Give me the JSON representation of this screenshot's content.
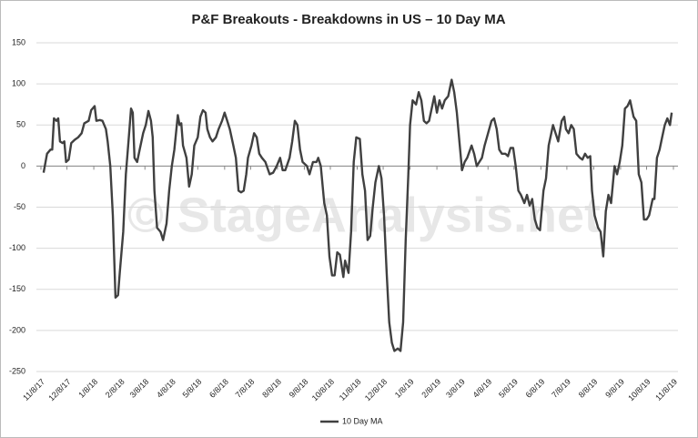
{
  "chart_data": {
    "type": "line",
    "title": "P&F Breakouts - Breakdowns in US – 10 Day MA",
    "watermark": "© StageAnalysis.net",
    "legend": "bottom",
    "grid": true,
    "xlim": [
      "11/8/17",
      "11/8/19"
    ],
    "xticks": [
      "11/8/17",
      "12/8/17",
      "1/8/18",
      "2/8/18",
      "3/8/18",
      "4/8/18",
      "5/8/18",
      "6/8/18",
      "7/8/18",
      "8/8/18",
      "9/8/18",
      "10/8/18",
      "11/8/18",
      "12/8/18",
      "1/8/19",
      "2/8/19",
      "3/8/19",
      "4/8/19",
      "5/8/19",
      "6/8/19",
      "7/8/19",
      "8/8/19",
      "9/8/19",
      "10/8/19",
      "11/8/19"
    ],
    "ylim": [
      -250,
      150
    ],
    "yticks": [
      -250,
      -200,
      -150,
      -100,
      -50,
      0,
      50,
      100,
      150
    ],
    "x": [
      "11/11/17",
      "11/15/17",
      "11/19/17",
      "11/21/17",
      "11/23/17",
      "11/26/17",
      "11/28/17",
      "11/30/17",
      "12/3/17",
      "12/5/17",
      "12/7/17",
      "12/10/17",
      "12/13/17",
      "12/17/17",
      "12/21/17",
      "12/25/17",
      "12/28/17",
      "1/2/18",
      "1/5/18",
      "1/9/18",
      "1/11/18",
      "1/15/18",
      "1/18/18",
      "1/22/18",
      "1/24/18",
      "1/27/18",
      "1/30/18",
      "2/2/18",
      "2/5/18",
      "2/7/18",
      "2/11/18",
      "2/14/18",
      "2/17/18",
      "2/20/18",
      "2/22/18",
      "2/24/18",
      "2/27/18",
      "3/2/18",
      "3/6/18",
      "3/9/18",
      "3/12/18",
      "3/15/18",
      "3/17/18",
      "3/19/18",
      "3/22/18",
      "3/26/18",
      "3/29/18",
      "4/2/18",
      "4/5/18",
      "4/8/18",
      "4/11/18",
      "4/15/18",
      "4/17/18",
      "4/19/18",
      "4/21/18",
      "4/25/18",
      "4/28/18",
      "5/1/18",
      "5/4/18",
      "5/8/18",
      "5/11/18",
      "5/14/18",
      "5/17/18",
      "5/19/18",
      "5/22/18",
      "5/25/18",
      "5/29/18",
      "6/1/18",
      "6/5/18",
      "6/8/18",
      "6/11/18",
      "6/14/18",
      "6/18/18",
      "6/21/18",
      "6/24/18",
      "6/27/18",
      "6/30/18",
      "7/3/18",
      "7/5/18",
      "7/9/18",
      "7/12/18",
      "7/15/18",
      "7/18/18",
      "7/21/18",
      "7/25/18",
      "7/30/18",
      "8/3/18",
      "8/7/18",
      "8/11/18",
      "8/14/18",
      "8/17/18",
      "8/22/18",
      "8/25/18",
      "8/28/18",
      "8/31/18",
      "9/3/18",
      "9/6/18",
      "9/11/18",
      "9/14/18",
      "9/18/18",
      "9/22/18",
      "9/24/18",
      "9/27/18",
      "10/1/18",
      "10/4/18",
      "10/7/18",
      "10/10/18",
      "10/13/18",
      "10/16/18",
      "10/19/18",
      "10/23/18",
      "10/25/18",
      "10/29/18",
      "11/1/18",
      "11/4/18",
      "11/7/18",
      "11/11/18",
      "11/14/18",
      "11/17/18",
      "11/20/18",
      "11/23/18",
      "11/26/18",
      "11/29/18",
      "12/3/18",
      "12/6/18",
      "12/9/18",
      "12/12/18",
      "12/15/18",
      "12/18/18",
      "12/21/18",
      "12/25/18",
      "12/28/18",
      "12/31/18",
      "1/3/19",
      "1/6/19",
      "1/8/19",
      "1/11/19",
      "1/15/19",
      "1/18/19",
      "1/21/19",
      "1/24/19",
      "1/27/19",
      "1/30/19",
      "2/3/19",
      "2/5/19",
      "2/8/19",
      "2/11/19",
      "2/14/19",
      "2/17/19",
      "2/21/19",
      "2/25/19",
      "2/28/19",
      "3/3/19",
      "3/6/19",
      "3/9/19",
      "3/12/19",
      "3/15/19",
      "3/20/19",
      "3/23/19",
      "3/26/19",
      "3/29/19",
      "4/1/19",
      "4/4/19",
      "4/8/19",
      "4/12/19",
      "4/15/19",
      "4/18/19",
      "4/21/19",
      "4/24/19",
      "4/28/19",
      "5/1/19",
      "5/4/19",
      "5/7/19",
      "5/10/19",
      "5/13/19",
      "5/16/19",
      "5/20/19",
      "5/23/19",
      "5/26/19",
      "5/29/19",
      "6/1/19",
      "6/4/19",
      "6/7/19",
      "6/11/19",
      "6/14/19",
      "6/17/19",
      "6/20/19",
      "6/22/19",
      "6/25/19",
      "6/28/19",
      "7/2/19",
      "7/5/19",
      "7/7/19",
      "7/10/19",
      "7/13/19",
      "7/16/19",
      "7/19/19",
      "7/23/19",
      "7/26/19",
      "7/29/19",
      "8/1/19",
      "8/4/19",
      "8/6/19",
      "8/9/19",
      "8/13/19",
      "8/16/19",
      "8/19/19",
      "8/22/19",
      "8/25/19",
      "8/28/19",
      "9/1/19",
      "9/4/19",
      "9/7/19",
      "9/10/19",
      "9/13/19",
      "9/16/19",
      "9/19/19",
      "9/23/19",
      "9/26/19",
      "9/29/19",
      "10/2/19",
      "10/5/19",
      "10/8/19",
      "10/11/19",
      "10/15/19",
      "10/17/19",
      "10/20/19",
      "10/23/19",
      "10/26/19",
      "10/29/19",
      "11/1/19",
      "11/4/19",
      "11/6/19"
    ],
    "series": [
      {
        "name": "10 Day MA",
        "color": "#404040",
        "values": [
          -8,
          15,
          20,
          20,
          58,
          55,
          58,
          30,
          28,
          30,
          5,
          8,
          28,
          32,
          35,
          40,
          52,
          55,
          68,
          73,
          55,
          56,
          55,
          45,
          30,
          0,
          -60,
          -160,
          -157,
          -130,
          -80,
          -10,
          30,
          70,
          65,
          10,
          5,
          20,
          40,
          50,
          67,
          55,
          35,
          -30,
          -75,
          -80,
          -90,
          -70,
          -30,
          0,
          20,
          62,
          50,
          52,
          25,
          10,
          -25,
          -10,
          25,
          35,
          60,
          68,
          65,
          45,
          35,
          30,
          35,
          45,
          55,
          65,
          55,
          45,
          25,
          10,
          -30,
          -32,
          -30,
          -10,
          10,
          25,
          40,
          35,
          15,
          10,
          5,
          -10,
          -8,
          0,
          10,
          -5,
          -5,
          10,
          30,
          55,
          50,
          20,
          5,
          0,
          -10,
          5,
          5,
          10,
          0,
          -45,
          -60,
          -110,
          -133,
          -133,
          -105,
          -108,
          -135,
          -115,
          -130,
          -80,
          5,
          35,
          33,
          -10,
          -30,
          -90,
          -85,
          -50,
          -20,
          0,
          -15,
          -60,
          -130,
          -190,
          -215,
          -225,
          -222,
          -225,
          -190,
          -90,
          -10,
          50,
          80,
          75,
          90,
          80,
          55,
          52,
          55,
          75,
          85,
          65,
          80,
          70,
          80,
          85,
          105,
          90,
          65,
          30,
          -5,
          5,
          10,
          25,
          15,
          0,
          5,
          10,
          25,
          40,
          55,
          58,
          45,
          20,
          15,
          15,
          12,
          22,
          22,
          0,
          -30,
          -35,
          -45,
          -35,
          -48,
          -40,
          -65,
          -75,
          -78,
          -30,
          -15,
          25,
          40,
          50,
          40,
          30,
          55,
          60,
          45,
          40,
          50,
          45,
          15,
          10,
          8,
          15,
          10,
          12,
          -30,
          -60,
          -75,
          -80,
          -110,
          -55,
          -35,
          -45,
          0,
          -10,
          5,
          25,
          70,
          73,
          80,
          60,
          55,
          -10,
          -20,
          -65,
          -65,
          -60,
          -40,
          -40,
          10,
          20,
          35,
          50,
          58,
          50,
          65
        ]
      }
    ]
  }
}
